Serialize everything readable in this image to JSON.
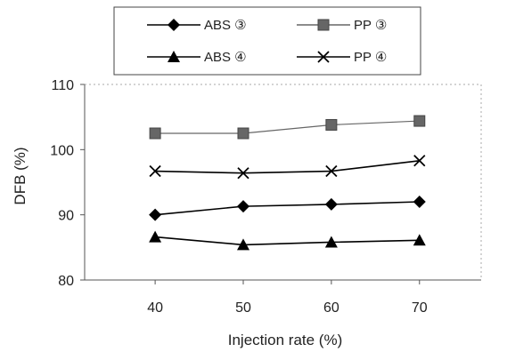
{
  "chart_data": {
    "type": "line",
    "title": "",
    "xlabel": "Injection rate (%)",
    "ylabel": "DFB (%)",
    "x": [
      40,
      50,
      60,
      70
    ],
    "xlim": [
      32,
      77
    ],
    "ylim": [
      80,
      110
    ],
    "yticks": [
      80,
      90,
      100,
      110
    ],
    "grid": false,
    "legend": "top",
    "series": [
      {
        "name": "ABS ③",
        "marker": "diamond",
        "color": "#000000",
        "values": [
          90.0,
          91.3,
          91.6,
          92.0
        ]
      },
      {
        "name": "PP ③",
        "marker": "square",
        "color": "#666666",
        "values": [
          102.5,
          102.5,
          103.8,
          104.4
        ]
      },
      {
        "name": "ABS ④",
        "marker": "triangle",
        "color": "#000000",
        "values": [
          86.6,
          85.4,
          85.8,
          86.1
        ]
      },
      {
        "name": "PP ④",
        "marker": "x",
        "color": "#000000",
        "values": [
          96.7,
          96.4,
          96.7,
          98.3
        ]
      }
    ]
  }
}
